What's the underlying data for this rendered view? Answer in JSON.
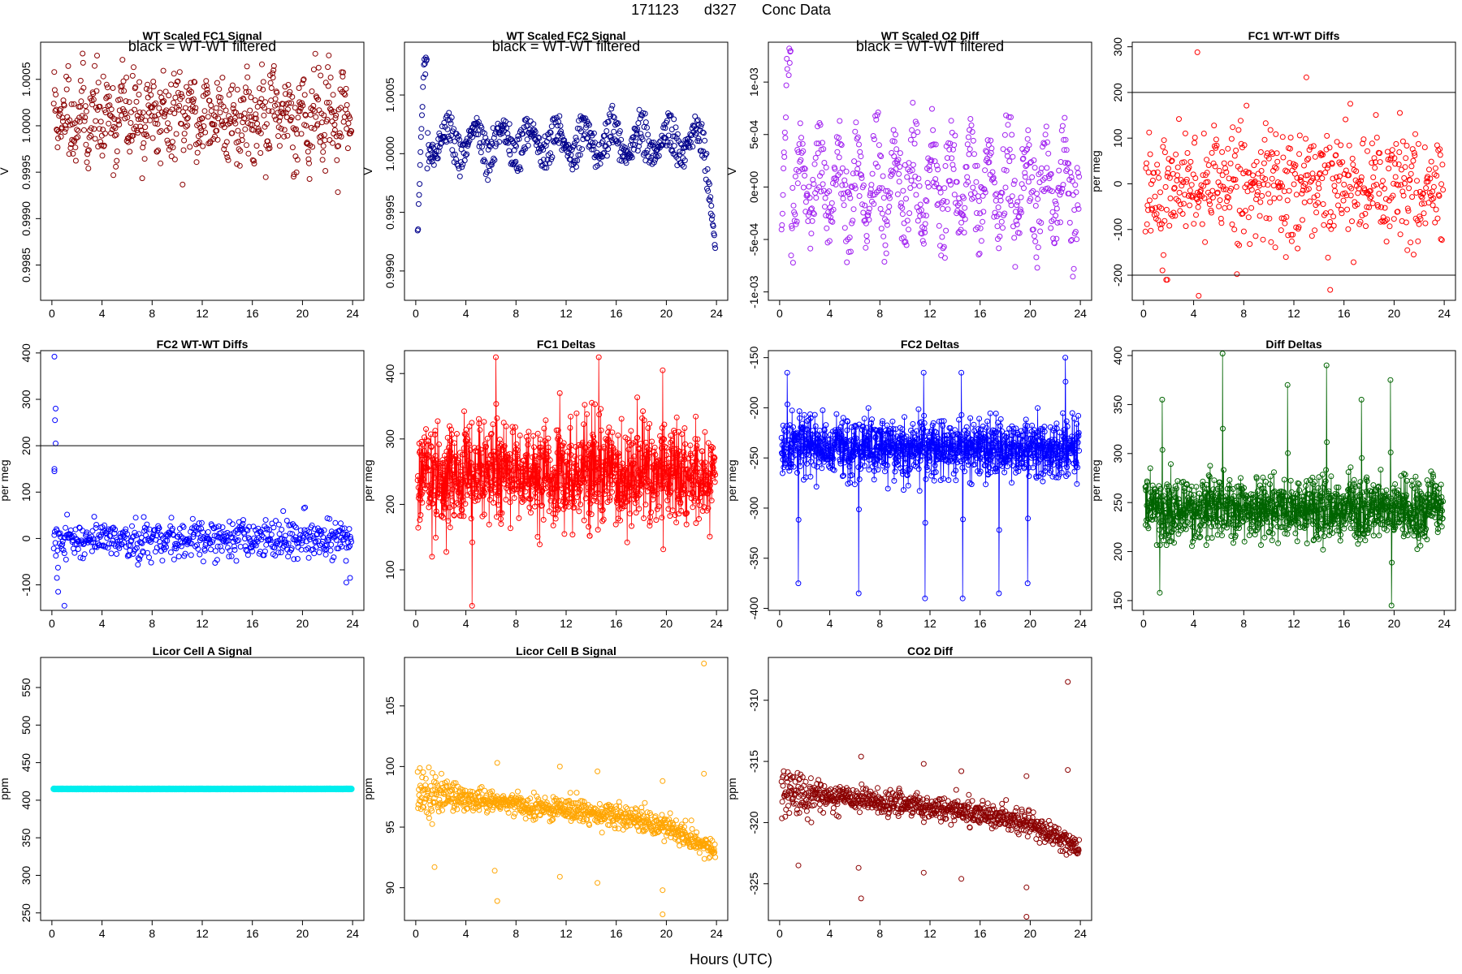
{
  "figure": {
    "title_parts": [
      "171123",
      "d327",
      "Conc Data"
    ],
    "xlabel": "Hours (UTC)"
  },
  "chart_data": [
    {
      "type": "scatter",
      "title": "WT Scaled FC1 Signal",
      "ylabel": "V",
      "color": "#8b0000",
      "note": "black = WT-WT filtered",
      "xlim": [
        -0.9,
        24.9
      ],
      "ylim": [
        0.99812,
        1.0009
      ],
      "xticks": [
        0,
        4,
        8,
        12,
        16,
        20,
        24
      ],
      "yticks": [
        0.9985,
        0.999,
        0.9995,
        1.0,
        1.0005
      ],
      "ytick_labels": [
        "0.9985",
        "0.9990",
        "0.9995",
        "1.0000",
        "1.0005"
      ],
      "hlines": [],
      "lines": false,
      "model": {
        "n": 620,
        "base": 1.0001,
        "noise": 0.00022,
        "amp": 0.0002,
        "period": 1.1,
        "seed": 11,
        "tail": {
          "start": 23.2,
          "end": 1.0
        }
      }
    },
    {
      "type": "scatter",
      "title": "WT Scaled FC2 Signal",
      "ylabel": "V",
      "color": "#00008b",
      "note": "black = WT-WT filtered",
      "xlim": [
        -0.9,
        24.9
      ],
      "ylim": [
        0.99875,
        1.00095
      ],
      "xticks": [
        0,
        4,
        8,
        12,
        16,
        20,
        24
      ],
      "yticks": [
        0.999,
        0.9995,
        1.0,
        1.0005
      ],
      "ytick_labels": [
        "0.9990",
        "0.9995",
        "1.0000",
        "1.0005"
      ],
      "hlines": [],
      "lines": false,
      "model": {
        "n": 620,
        "base": 1.0001,
        "noise": 4e-05,
        "amp": 0.00012,
        "period": 2.2,
        "seed": 12,
        "two": 0.00022,
        "tail": {
          "start": 22.9,
          "end": 0.99905
        },
        "head": {
          "from": 0.9988,
          "to": 1.0008
        }
      }
    },
    {
      "type": "scatter",
      "title": "WT Scaled O2 Diff",
      "ylabel": "V",
      "color": "#a020f0",
      "note": "black = WT-WT filtered",
      "xlim": [
        -0.9,
        24.9
      ],
      "ylim": [
        -0.00108,
        0.00138
      ],
      "xticks": [
        0,
        4,
        8,
        12,
        16,
        20,
        24
      ],
      "yticks": [
        -0.001,
        -0.0005,
        0,
        0.0005,
        0.001
      ],
      "ytick_labels": [
        "-1e-03",
        "-5e-04",
        "0e+00",
        "5e-04",
        "1e-03"
      ],
      "hlines": [],
      "lines": false,
      "model": {
        "n": 620,
        "base": 0.0,
        "noise": 0.00012,
        "amp": 0.00035,
        "period": 1.5,
        "seed": 13,
        "two": 0.0005,
        "head": {
          "from": -0.001,
          "to": 0.0013
        }
      }
    },
    {
      "type": "scatter",
      "title": "FC1 WT-WT Diffs",
      "ylabel": "per meg",
      "color": "#ff0000",
      "note": "",
      "xlim": [
        -0.9,
        24.9
      ],
      "ylim": [
        -255,
        310
      ],
      "xticks": [
        0,
        4,
        8,
        12,
        16,
        20,
        24
      ],
      "yticks": [
        -200,
        -100,
        0,
        100,
        200,
        300
      ],
      "ytick_labels": [
        "-200",
        "-100",
        "0",
        "100",
        "200",
        "300"
      ],
      "hlines": [
        200,
        -200
      ],
      "lines": false,
      "model": {
        "n": 560,
        "base": 0,
        "noise": 65,
        "amp": 0,
        "period": 3,
        "seed": 14,
        "outliers": [
          [
            4.3,
            288
          ],
          [
            13.0,
            233
          ],
          [
            4.4,
            -245
          ],
          [
            1.9,
            -210
          ],
          [
            14.9,
            -232
          ]
        ]
      }
    },
    {
      "type": "scatter",
      "title": "FC2 WT-WT Diffs",
      "ylabel": "per meg",
      "color": "#0000ff",
      "note": "",
      "xlim": [
        -0.9,
        24.9
      ],
      "ylim": [
        -155,
        405
      ],
      "xticks": [
        0,
        4,
        8,
        12,
        16,
        20,
        24
      ],
      "yticks": [
        -100,
        0,
        100,
        200,
        300,
        400
      ],
      "ytick_labels": [
        "-100",
        "0",
        "100",
        "200",
        "300",
        "400"
      ],
      "hlines": [
        200
      ],
      "lines": false,
      "model": {
        "n": 560,
        "base": 0,
        "noise": 20,
        "amp": 0,
        "period": 3,
        "seed": 15,
        "outliers": [
          [
            0.2,
            392
          ],
          [
            0.3,
            280
          ],
          [
            0.25,
            255
          ],
          [
            0.3,
            205
          ],
          [
            0.2,
            150
          ],
          [
            0.2,
            145
          ],
          [
            0.5,
            -115
          ],
          [
            1.0,
            -145
          ],
          [
            0.4,
            -85
          ],
          [
            23.5,
            -95
          ],
          [
            23.8,
            -85
          ]
        ]
      }
    },
    {
      "type": "scatter",
      "title": "FC1 Deltas",
      "ylabel": "per meg",
      "color": "#ff0000",
      "note": "",
      "xlim": [
        -0.9,
        24.9
      ],
      "ylim": [
        38,
        435
      ],
      "xticks": [
        0,
        4,
        8,
        12,
        16,
        20,
        24
      ],
      "yticks": [
        100,
        200,
        300,
        400
      ],
      "ytick_labels": [
        "100",
        "200",
        "300",
        "400"
      ],
      "hlines": [],
      "lines": true,
      "model": {
        "n": 1100,
        "base": 245,
        "noise": 38,
        "amp": 0,
        "period": 3,
        "seed": 16,
        "spikes": [
          [
            6.4,
            425
          ],
          [
            14.6,
            425
          ],
          [
            19.7,
            405
          ],
          [
            11.5,
            370
          ],
          [
            4.5,
            45
          ],
          [
            1.3,
            120
          ]
        ]
      }
    },
    {
      "type": "scatter",
      "title": "FC2 Deltas",
      "ylabel": "per meg",
      "color": "#0000ff",
      "note": "",
      "xlim": [
        -0.9,
        24.9
      ],
      "ylim": [
        -402,
        -143
      ],
      "xticks": [
        0,
        4,
        8,
        12,
        16,
        20,
        24
      ],
      "yticks": [
        -400,
        -350,
        -300,
        -250,
        -200,
        -150
      ],
      "ytick_labels": [
        "-400",
        "-350",
        "-300",
        "-250",
        "-200",
        "-150"
      ],
      "hlines": [],
      "lines": true,
      "model": {
        "n": 1100,
        "base": -240,
        "noise": 14,
        "amp": 0,
        "period": 3,
        "seed": 17,
        "spikes": [
          [
            1.5,
            -375
          ],
          [
            6.3,
            -385
          ],
          [
            11.6,
            -390
          ],
          [
            14.6,
            -390
          ],
          [
            19.8,
            -375
          ],
          [
            17.5,
            -385
          ],
          [
            22.8,
            -150
          ],
          [
            0.6,
            -165
          ],
          [
            11.5,
            -165
          ],
          [
            14.5,
            -165
          ]
        ]
      }
    },
    {
      "type": "scatter",
      "title": "Diff Deltas",
      "ylabel": "per meg",
      "color": "#006400",
      "note": "",
      "xlim": [
        -0.9,
        24.9
      ],
      "ylim": [
        140,
        405
      ],
      "xticks": [
        0,
        4,
        8,
        12,
        16,
        20,
        24
      ],
      "yticks": [
        150,
        200,
        250,
        300,
        350,
        400
      ],
      "ytick_labels": [
        "150",
        "200",
        "250",
        "300",
        "350",
        "400"
      ],
      "hlines": [],
      "lines": true,
      "model": {
        "n": 1100,
        "base": 243,
        "noise": 16,
        "amp": 0,
        "period": 3,
        "seed": 18,
        "spikes": [
          [
            6.3,
            402
          ],
          [
            11.5,
            370
          ],
          [
            14.6,
            390
          ],
          [
            19.7,
            375
          ],
          [
            1.5,
            355
          ],
          [
            17.4,
            355
          ],
          [
            19.8,
            145
          ],
          [
            1.3,
            158
          ]
        ]
      }
    },
    {
      "type": "scatter",
      "title": "Licor Cell A Signal",
      "ylabel": "ppm",
      "color": "#00eeee",
      "note": "",
      "xlim": [
        -0.9,
        24.9
      ],
      "ylim": [
        240,
        590
      ],
      "xticks": [
        0,
        4,
        8,
        12,
        16,
        20,
        24
      ],
      "yticks": [
        250,
        300,
        350,
        400,
        450,
        500,
        550
      ],
      "ytick_labels": [
        "250",
        "300",
        "350",
        "400",
        "450",
        "500",
        "550"
      ],
      "hlines": [],
      "lines": false,
      "model": {
        "n": 700,
        "base": 415,
        "noise": 0.3,
        "amp": 0,
        "period": 3,
        "seed": 19,
        "tight": true
      }
    },
    {
      "type": "scatter",
      "title": "Licor Cell B Signal",
      "ylabel": "ppm",
      "color": "#ffa500",
      "note": "",
      "xlim": [
        -0.9,
        24.9
      ],
      "ylim": [
        87.3,
        109
      ],
      "xticks": [
        0,
        4,
        8,
        12,
        16,
        20,
        24
      ],
      "yticks": [
        90,
        95,
        100,
        105
      ],
      "ytick_labels": [
        "90",
        "95",
        "100",
        "105"
      ],
      "hlines": [],
      "lines": false,
      "model": {
        "n": 800,
        "base": 97.5,
        "noise": 0.5,
        "amp": 0,
        "period": 3,
        "seed": 20,
        "trend": [
          [
            0,
            97.8
          ],
          [
            10,
            96.7
          ],
          [
            16,
            96.0
          ],
          [
            20,
            95.0
          ],
          [
            24,
            93.0
          ]
        ],
        "early": 3.5,
        "outliers": [
          [
            1.5,
            91.7
          ],
          [
            6.3,
            91.4
          ],
          [
            6.5,
            88.9
          ],
          [
            11.5,
            90.9
          ],
          [
            14.5,
            90.4
          ],
          [
            19.7,
            87.8
          ],
          [
            19.7,
            89.8
          ],
          [
            6.5,
            100.3
          ],
          [
            11.5,
            100.0
          ],
          [
            14.5,
            99.6
          ],
          [
            19.7,
            98.8
          ],
          [
            23.0,
            108.5
          ],
          [
            23.0,
            99.4
          ]
        ]
      }
    },
    {
      "type": "scatter",
      "title": "CO2 Diff",
      "ylabel": "ppm",
      "color": "#8b0000",
      "note": "",
      "xlim": [
        -0.9,
        24.9
      ],
      "ylim": [
        -328,
        -306.5
      ],
      "xticks": [
        0,
        4,
        8,
        12,
        16,
        20,
        24
      ],
      "yticks": [
        -325,
        -320,
        -315,
        -310
      ],
      "ytick_labels": [
        "-325",
        "-320",
        "-315",
        "-310"
      ],
      "hlines": [],
      "lines": false,
      "model": {
        "n": 800,
        "base": -317.5,
        "noise": 0.5,
        "amp": 0,
        "period": 3,
        "seed": 21,
        "trend": [
          [
            0,
            -317.5
          ],
          [
            10,
            -318.5
          ],
          [
            16,
            -319.2
          ],
          [
            20,
            -320.2
          ],
          [
            24,
            -322.0
          ]
        ],
        "early": 3.5,
        "outliers": [
          [
            1.5,
            -323.5
          ],
          [
            6.3,
            -323.7
          ],
          [
            6.5,
            -326.2
          ],
          [
            11.5,
            -324.1
          ],
          [
            14.5,
            -324.6
          ],
          [
            19.7,
            -327.7
          ],
          [
            19.7,
            -325.3
          ],
          [
            6.5,
            -314.6
          ],
          [
            11.5,
            -315.2
          ],
          [
            14.5,
            -315.8
          ],
          [
            19.7,
            -316.2
          ],
          [
            23.0,
            -308.5
          ],
          [
            23.0,
            -315.7
          ]
        ]
      }
    }
  ]
}
